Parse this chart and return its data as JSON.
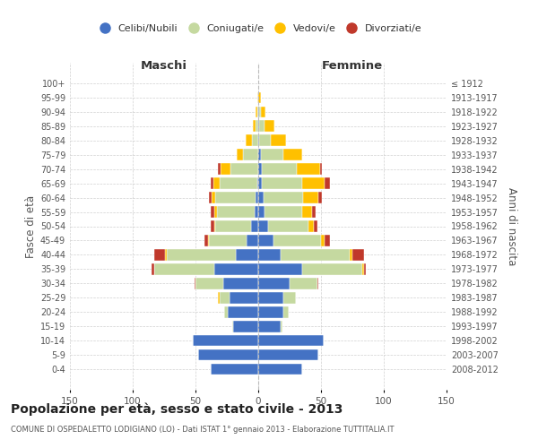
{
  "age_groups": [
    "0-4",
    "5-9",
    "10-14",
    "15-19",
    "20-24",
    "25-29",
    "30-34",
    "35-39",
    "40-44",
    "45-49",
    "50-54",
    "55-59",
    "60-64",
    "65-69",
    "70-74",
    "75-79",
    "80-84",
    "85-89",
    "90-94",
    "95-99",
    "100+"
  ],
  "birth_years": [
    "2008-2012",
    "2003-2007",
    "1998-2002",
    "1993-1997",
    "1988-1992",
    "1983-1987",
    "1978-1982",
    "1973-1977",
    "1968-1972",
    "1963-1967",
    "1958-1962",
    "1953-1957",
    "1948-1952",
    "1943-1947",
    "1938-1942",
    "1933-1937",
    "1928-1932",
    "1923-1927",
    "1918-1922",
    "1913-1917",
    "≤ 1912"
  ],
  "male_celibe": [
    38,
    48,
    52,
    20,
    24,
    23,
    28,
    35,
    18,
    9,
    6,
    3,
    2,
    1,
    0,
    0,
    0,
    0,
    0,
    0,
    0
  ],
  "male_coniugato": [
    0,
    0,
    0,
    1,
    3,
    8,
    22,
    48,
    55,
    30,
    28,
    30,
    32,
    30,
    22,
    12,
    5,
    2,
    1,
    0,
    0
  ],
  "male_vedovo": [
    0,
    0,
    0,
    0,
    0,
    1,
    0,
    0,
    1,
    1,
    1,
    2,
    3,
    5,
    8,
    5,
    5,
    2,
    1,
    1,
    0
  ],
  "male_divorziato": [
    0,
    0,
    0,
    0,
    0,
    0,
    1,
    2,
    9,
    3,
    3,
    3,
    2,
    2,
    2,
    0,
    0,
    0,
    0,
    0,
    0
  ],
  "female_celibe": [
    35,
    48,
    52,
    18,
    20,
    20,
    25,
    35,
    18,
    12,
    8,
    5,
    4,
    3,
    3,
    2,
    1,
    1,
    1,
    0,
    0
  ],
  "female_coniugato": [
    0,
    0,
    0,
    1,
    4,
    10,
    22,
    48,
    55,
    38,
    32,
    30,
    32,
    32,
    28,
    18,
    9,
    4,
    1,
    0,
    0
  ],
  "female_vedovo": [
    0,
    0,
    0,
    0,
    0,
    0,
    0,
    1,
    2,
    3,
    4,
    8,
    12,
    18,
    18,
    15,
    12,
    8,
    4,
    2,
    0
  ],
  "female_divorziato": [
    0,
    0,
    0,
    0,
    0,
    0,
    1,
    2,
    9,
    4,
    3,
    3,
    3,
    4,
    2,
    0,
    0,
    0,
    0,
    0,
    0
  ],
  "color_celibe": "#4472c4",
  "color_coniugato": "#c5d9a0",
  "color_vedovo": "#ffc000",
  "color_divorziato": "#c0392b",
  "title": "Popolazione per età, sesso e stato civile - 2013",
  "subtitle": "COMUNE DI OSPEDALETTO LODIGIANO (LO) - Dati ISTAT 1° gennaio 2013 - Elaborazione TUTTITALIA.IT",
  "xlabel_left": "Maschi",
  "xlabel_right": "Femmine",
  "ylabel_left": "Fasce di età",
  "ylabel_right": "Anni di nascita",
  "xlim": 150,
  "bg_color": "#ffffff",
  "grid_color": "#cccccc"
}
